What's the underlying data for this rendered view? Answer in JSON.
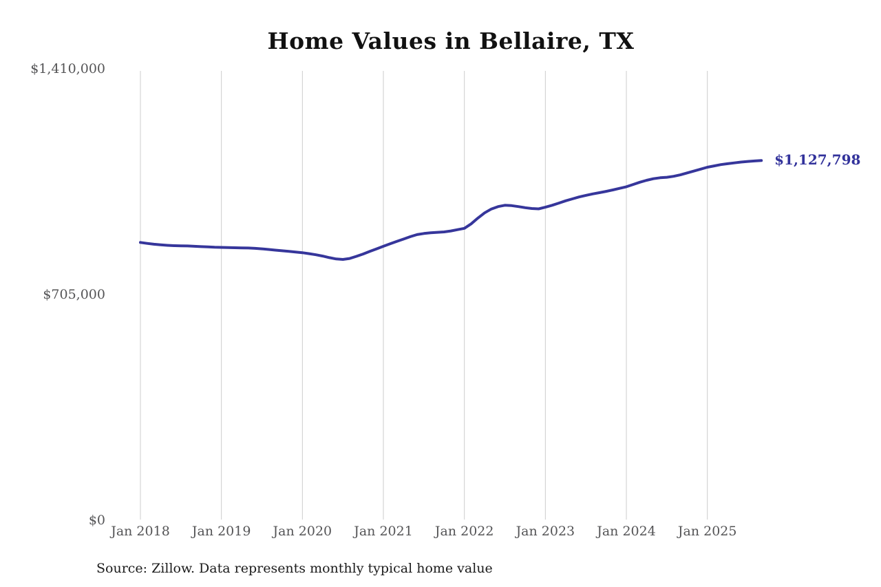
{
  "page": {
    "background": "#ffffff"
  },
  "chart": {
    "title": "Home Values in Bellaire, TX",
    "source": "Source: Zillow. Data represents monthly typical home value"
  },
  "chart_data": {
    "type": "line",
    "title": "Home Values in Bellaire, TX",
    "xlabel": "",
    "ylabel": "",
    "ylim": [
      0,
      1410000
    ],
    "interval": "monthly",
    "x_start": "Jan 2018",
    "x_end": "Sep 2025",
    "grid": "vertical-only",
    "legend_position": "none",
    "series_name": "Typical home value",
    "x_ticks": [
      "Jan 2018",
      "Jan 2019",
      "Jan 2020",
      "Jan 2021",
      "Jan 2022",
      "Jan 2023",
      "Jan 2024",
      "Jan 2025"
    ],
    "y_ticks": [
      {
        "label": "$1,410,000",
        "value": 1410000
      },
      {
        "label": "$705,000",
        "value": 705000
      },
      {
        "label": "$0",
        "value": 0
      }
    ],
    "end_label": "$1,127,798",
    "end_value": 1127798,
    "values": [
      872000,
      869000,
      866500,
      864500,
      863000,
      862000,
      861500,
      861000,
      860000,
      859000,
      858000,
      857000,
      856500,
      856000,
      855500,
      855000,
      854500,
      853500,
      852000,
      850000,
      848000,
      846000,
      844000,
      842000,
      840000,
      837000,
      833500,
      829500,
      824500,
      820500,
      819000,
      822000,
      828500,
      836000,
      844000,
      852000,
      860000,
      868000,
      875500,
      882500,
      890000,
      896500,
      900000,
      902000,
      903500,
      905000,
      908000,
      912000,
      916000,
      930000,
      948000,
      964500,
      976500,
      984000,
      988000,
      987000,
      984000,
      980500,
      978000,
      977000,
      982000,
      988000,
      995000,
      1002000,
      1008000,
      1014000,
      1019000,
      1023500,
      1027500,
      1031500,
      1036000,
      1041000,
      1046000,
      1053000,
      1060000,
      1066000,
      1071000,
      1074000,
      1075500,
      1078500,
      1083000,
      1089000,
      1095000,
      1101000,
      1107000,
      1111000,
      1115000,
      1118000,
      1120500,
      1123000,
      1125000,
      1126500,
      1127798
    ],
    "colors": {
      "line": "#36369b",
      "grid": "#cccccc",
      "axis_text": "#545456",
      "end_label": "#32329b",
      "title": "#111111",
      "source_text": "#1b1b1b"
    }
  }
}
